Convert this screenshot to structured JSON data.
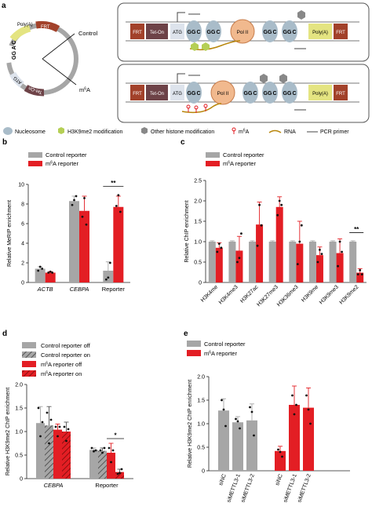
{
  "panel_a": {
    "label": "a",
    "plasmid": {
      "segments": [
        "Poly(A)",
        "FRT",
        "Tet-On",
        "ATG"
      ],
      "motif": "GG A C"
    },
    "arrows": [
      "Control",
      "m6A"
    ],
    "control_box": {
      "elements": [
        "FRT",
        "Tet-On",
        "ATG",
        "GG",
        "C",
        "GG",
        "C",
        "Pol II",
        "GG",
        "C",
        "GG",
        "C",
        "Poly(A)",
        "FRT"
      ]
    },
    "m6a_box": {
      "elements": [
        "FRT",
        "Tet-On",
        "ATG",
        "GG",
        "C",
        "Pol II",
        "GG",
        "C",
        "GG",
        "C",
        "GG",
        "C",
        "Poly(A)",
        "FRT"
      ]
    },
    "legend": [
      "Nucleosome",
      "H3K9me2 modification",
      "Other histone modification",
      "m6A",
      "RNA",
      "PCR primer"
    ],
    "colors": {
      "gray": "#a6a6a6",
      "red": "#e31e24",
      "polII": "#f1b98e",
      "nucleosome": "#a9bcc9",
      "h3k9me2": "#b5cf55",
      "frt": "#a2412a",
      "teton": "#6d4247",
      "polya": "#e4e481",
      "rna": "#b8860b"
    }
  },
  "panel_b": {
    "label": "b",
    "chart_data": {
      "type": "bar",
      "ylabel": "Relative MeRIP enrichment",
      "ylim": [
        0,
        10
      ],
      "yticks": [
        "0",
        "2",
        "4",
        "6",
        "8",
        "10"
      ],
      "categories": [
        "ACTB",
        "CEBPA",
        "Reporter"
      ],
      "series": [
        {
          "name": "Control reporter",
          "color": "#a6a6a6",
          "values": [
            1.4,
            8.3,
            1.2
          ],
          "errors": [
            0.2,
            0.5,
            0.9
          ],
          "points": [
            [
              1.2,
              1.6,
              1.4
            ],
            [
              7.9,
              8.4,
              8.8
            ],
            [
              0.3,
              0.5,
              2.0
            ]
          ]
        },
        {
          "name": "m6A reporter",
          "color": "#e31e24",
          "values": [
            1.0,
            7.3,
            7.7
          ],
          "errors": [
            0.1,
            1.5,
            1.1
          ],
          "points": [
            [
              1.0,
              1.1,
              1.0
            ],
            [
              6.7,
              8.6,
              5.9
            ],
            [
              7.8,
              8.9,
              7.2
            ]
          ]
        }
      ],
      "significance": [
        {
          "category": "Reporter",
          "label": "**"
        }
      ]
    }
  },
  "panel_c": {
    "label": "c",
    "chart_data": {
      "type": "bar",
      "ylabel": "Relative ChIP enrichment",
      "ylim": [
        0,
        2.5
      ],
      "yticks": [
        "0",
        "0.5",
        "1.0",
        "1.5",
        "2.0",
        "2.5"
      ],
      "categories": [
        "H3K4me",
        "H3K4me3",
        "H3K27ac",
        "H3K27me3",
        "H3K36me3",
        "H3K9me",
        "H3K9me3",
        "H3K9me2"
      ],
      "series": [
        {
          "name": "Control reporter",
          "color": "#a6a6a6",
          "values": [
            1,
            1,
            1,
            1,
            1,
            1,
            1,
            1
          ],
          "errors": [
            0.02,
            0.02,
            0.02,
            0.02,
            0.02,
            0.02,
            0.02,
            0.02
          ]
        },
        {
          "name": "m6A reporter",
          "color": "#e31e24",
          "values": [
            0.85,
            0.78,
            1.42,
            1.85,
            0.95,
            0.67,
            0.72,
            0.24
          ],
          "errors": [
            0.12,
            0.35,
            0.55,
            0.25,
            0.55,
            0.2,
            0.35,
            0.1
          ],
          "points": [
            [
              0.75,
              0.95,
              0.85
            ],
            [
              0.5,
              0.6,
              1.2
            ],
            [
              0.9,
              1.9,
              1.4
            ],
            [
              1.65,
              2.0,
              1.9
            ],
            [
              0.45,
              1.0,
              1.4
            ],
            [
              0.5,
              0.8,
              0.7
            ],
            [
              0.4,
              1.0,
              0.75
            ],
            [
              0.2,
              0.3,
              0.2
            ]
          ]
        }
      ],
      "significance": [
        {
          "category": "H3K9me2",
          "label": "**"
        }
      ]
    }
  },
  "panel_d": {
    "label": "d",
    "chart_data": {
      "type": "bar",
      "ylabel": "Relative H3K9me2 ChIP enrichment",
      "ylim": [
        0,
        2.0
      ],
      "yticks": [
        "0",
        "0.5",
        "1.0",
        "1.5",
        "2.0"
      ],
      "categories": [
        "CEBPA",
        "Reporter"
      ],
      "series": [
        {
          "name": "Control reporter off",
          "color": "#a6a6a6",
          "hatch": false,
          "values": [
            1.18,
            0.61
          ],
          "errors": [
            0.35,
            0.04
          ],
          "points": [
            [
              1.5,
              0.9,
              1.2
            ],
            [
              0.65,
              0.58,
              0.6
            ]
          ]
        },
        {
          "name": "Control reporter on",
          "color": "#a6a6a6",
          "hatch": true,
          "values": [
            1.13,
            0.59
          ],
          "errors": [
            0.4,
            0.06
          ],
          "points": [
            [
              1.4,
              0.75,
              1.25
            ],
            [
              0.6,
              0.55,
              0.65
            ]
          ]
        },
        {
          "name": "m6A reporter off",
          "color": "#e31e24",
          "hatch": false,
          "values": [
            1.04,
            0.55
          ],
          "errors": [
            0.12,
            0.2
          ],
          "points": [
            [
              1.1,
              0.9,
              1.1
            ],
            [
              0.65,
              0.35,
              0.6
            ]
          ]
        },
        {
          "name": "m6A reporter on",
          "color": "#e31e24",
          "hatch": true,
          "values": [
            1.0,
            0.14
          ],
          "errors": [
            0.2,
            0.06
          ],
          "points": [
            [
              1.1,
              0.8,
              1.05
            ],
            [
              0.1,
              0.12,
              0.2
            ]
          ]
        }
      ],
      "significance": [
        {
          "category": "Reporter",
          "label": "*"
        }
      ]
    }
  },
  "panel_e": {
    "label": "e",
    "chart_data": {
      "type": "bar",
      "ylabel": "Relative H3K9me2 ChIP enrichment",
      "ylim": [
        0,
        2.0
      ],
      "yticks": [
        "0",
        "0.5",
        "1.0",
        "1.5",
        "2.0"
      ],
      "categories": [
        "siNC",
        "siMETTL3-1",
        "siMETTL3-2",
        "siNC",
        "siMETTL3-1",
        "siMETTL3-2"
      ],
      "legend": [
        "Control reporter",
        "m6A reporter"
      ],
      "bars": [
        {
          "group": "Control reporter",
          "color": "#a6a6a6",
          "value": 1.28,
          "error": 0.25,
          "points": [
            1.5,
            1.3,
            0.95
          ]
        },
        {
          "group": "Control reporter",
          "color": "#a6a6a6",
          "value": 1.03,
          "error": 0.12,
          "points": [
            1.1,
            1.05,
            0.9
          ]
        },
        {
          "group": "Control reporter",
          "color": "#a6a6a6",
          "value": 1.07,
          "error": 0.35,
          "points": [
            1.35,
            1.25,
            0.75
          ]
        },
        {
          "group": "m6A reporter",
          "color": "#e31e24",
          "value": 0.42,
          "error": 0.1,
          "points": [
            0.45,
            0.4,
            0.3
          ]
        },
        {
          "group": "m6A reporter",
          "color": "#e31e24",
          "value": 1.4,
          "error": 0.4,
          "points": [
            1.6,
            1.2,
            1.4
          ]
        },
        {
          "group": "m6A reporter",
          "color": "#e31e24",
          "value": 1.34,
          "error": 0.42,
          "points": [
            1.6,
            1.3,
            1.0
          ]
        }
      ]
    }
  }
}
